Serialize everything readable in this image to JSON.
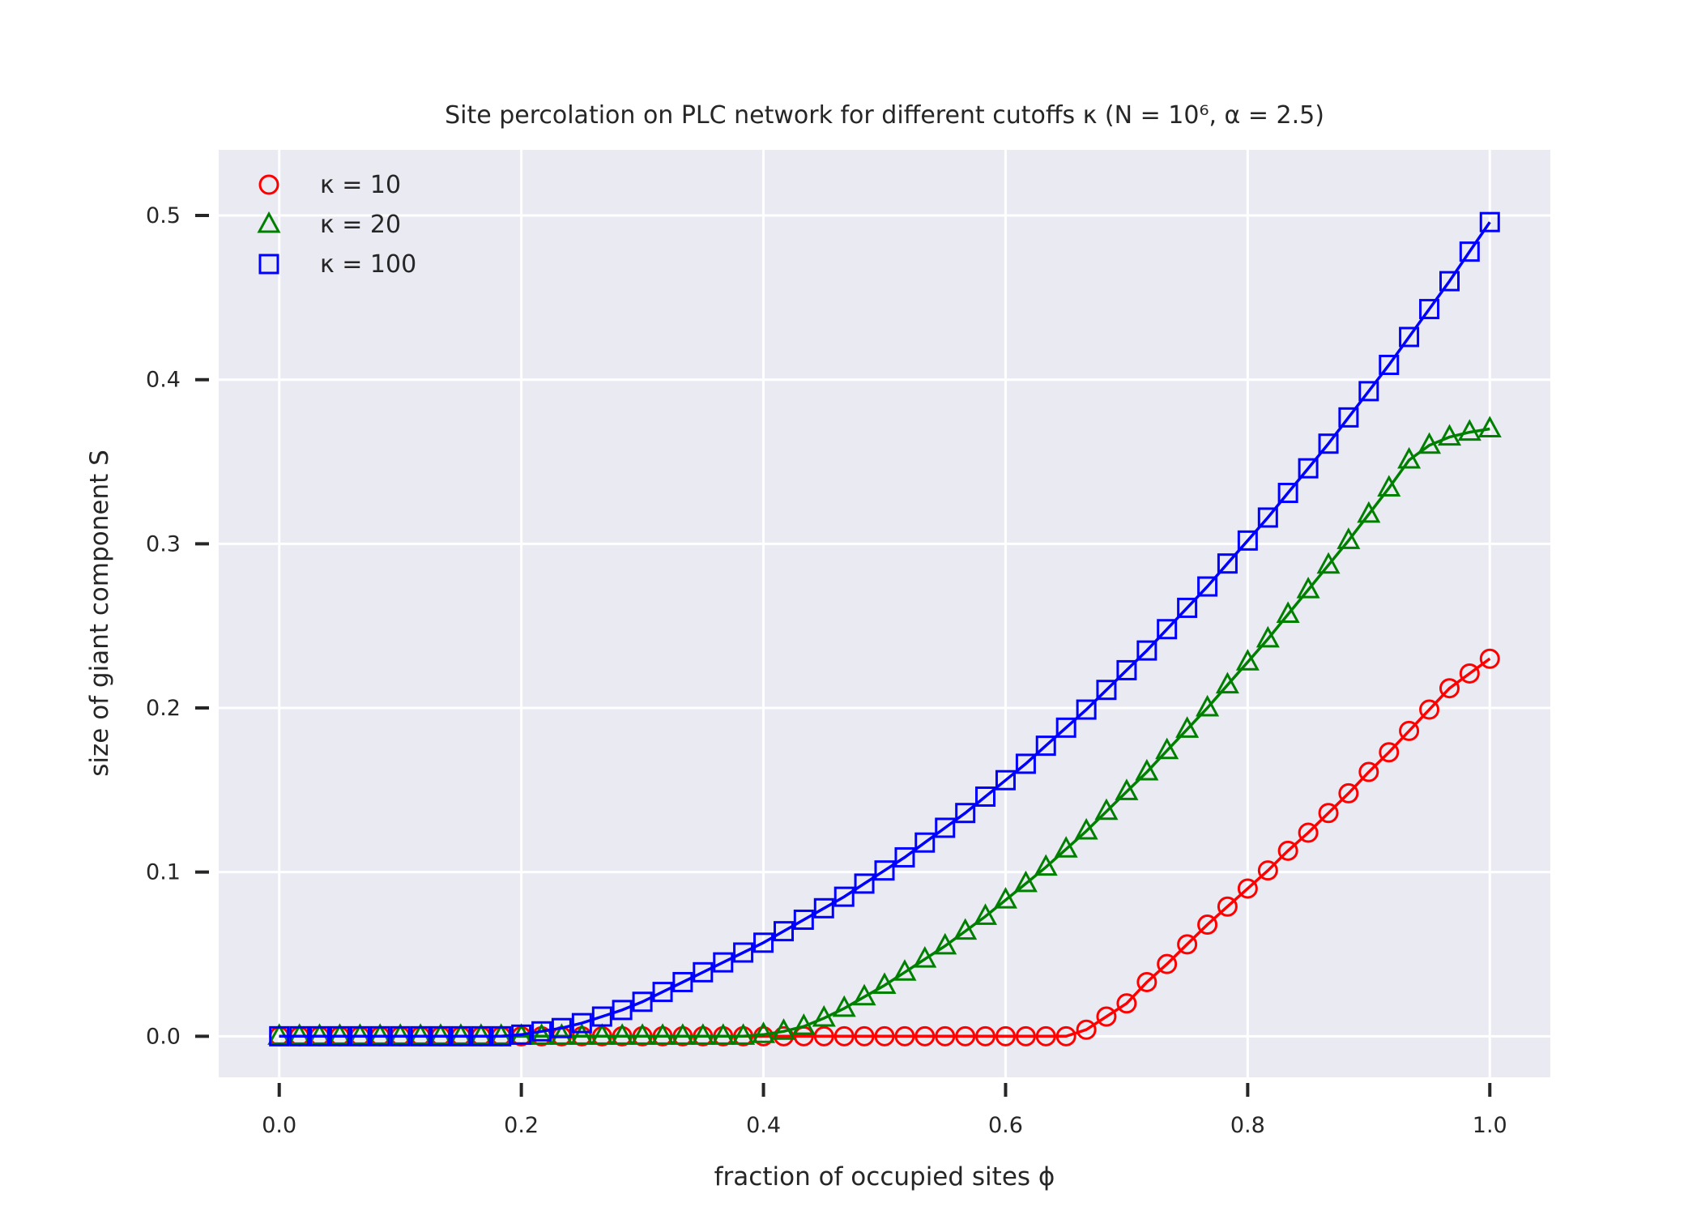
{
  "chart_data": {
    "type": "line",
    "title": "Site percolation on PLC network for different cutoffs κ (N = 10⁶, α = 2.5)",
    "xlabel": "fraction of occupied sites ϕ",
    "ylabel": "size of giant component S",
    "xlim": [
      -0.05,
      1.05
    ],
    "ylim": [
      -0.025,
      0.54
    ],
    "xticks": [
      0.0,
      0.2,
      0.4,
      0.6,
      0.8,
      1.0
    ],
    "xtick_labels": [
      "0.0",
      "0.2",
      "0.4",
      "0.6",
      "0.8",
      "1.0"
    ],
    "yticks": [
      0.0,
      0.1,
      0.2,
      0.3,
      0.4,
      0.5
    ],
    "ytick_labels": [
      "0.0",
      "0.1",
      "0.2",
      "0.3",
      "0.4",
      "0.5"
    ],
    "grid": true,
    "legend_position": "top-left",
    "background_color": "#eaeaf2",
    "series": [
      {
        "name": "κ = 10",
        "color": "#ff0000",
        "marker": "circle",
        "x": [
          0.0,
          0.0167,
          0.0333,
          0.05,
          0.0667,
          0.0833,
          0.1,
          0.1167,
          0.1333,
          0.15,
          0.1667,
          0.1833,
          0.2,
          0.2167,
          0.2333,
          0.25,
          0.2667,
          0.2833,
          0.3,
          0.3167,
          0.3333,
          0.35,
          0.3667,
          0.3833,
          0.4,
          0.4167,
          0.4333,
          0.45,
          0.4667,
          0.4833,
          0.5,
          0.5167,
          0.5333,
          0.55,
          0.5667,
          0.5833,
          0.6,
          0.6167,
          0.6333,
          0.65,
          0.6667,
          0.6833,
          0.7,
          0.7167,
          0.7333,
          0.75,
          0.7667,
          0.7833,
          0.8,
          0.8167,
          0.8333,
          0.85,
          0.8667,
          0.8833,
          0.9,
          0.9167,
          0.9333,
          0.95,
          0.9667,
          0.9833,
          1.0
        ],
        "y": [
          0.0,
          0.0,
          0.0,
          0.0,
          0.0,
          0.0,
          0.0,
          0.0,
          0.0,
          0.0,
          0.0,
          0.0,
          0.0,
          0.0,
          0.0,
          0.0,
          0.0,
          0.0,
          0.0,
          0.0,
          0.0,
          0.0,
          0.0,
          0.0,
          0.0,
          0.0,
          0.0,
          0.0,
          0.0,
          0.0,
          0.0,
          0.0,
          0.0,
          0.0,
          0.0,
          0.0,
          0.0,
          0.0,
          0.0,
          0.0,
          0.004,
          0.012,
          0.02,
          0.033,
          0.044,
          0.056,
          0.068,
          0.079,
          0.09,
          0.101,
          0.113,
          0.124,
          0.136,
          0.148,
          0.161,
          0.173,
          0.186,
          0.199,
          0.212,
          0.221,
          0.23
        ]
      },
      {
        "name": "κ = 20",
        "color": "#008000",
        "marker": "triangle",
        "x": [
          0.0,
          0.0167,
          0.0333,
          0.05,
          0.0667,
          0.0833,
          0.1,
          0.1167,
          0.1333,
          0.15,
          0.1667,
          0.1833,
          0.2,
          0.2167,
          0.2333,
          0.25,
          0.2667,
          0.2833,
          0.3,
          0.3167,
          0.3333,
          0.35,
          0.3667,
          0.3833,
          0.4,
          0.4167,
          0.4333,
          0.45,
          0.4667,
          0.4833,
          0.5,
          0.5167,
          0.5333,
          0.55,
          0.5667,
          0.5833,
          0.6,
          0.6167,
          0.6333,
          0.65,
          0.6667,
          0.6833,
          0.7,
          0.7167,
          0.7333,
          0.75,
          0.7667,
          0.7833,
          0.8,
          0.8167,
          0.8333,
          0.85,
          0.8667,
          0.8833,
          0.9,
          0.9167,
          0.9333,
          0.95,
          0.9667,
          0.9833,
          1.0
        ],
        "y": [
          0.0,
          0.0,
          0.0,
          0.0,
          0.0,
          0.0,
          0.0,
          0.0,
          0.0,
          0.0,
          0.0,
          0.0,
          0.0,
          0.0,
          0.0,
          0.0,
          0.0,
          0.0,
          0.0,
          0.0,
          0.0,
          0.0,
          0.0,
          0.0,
          0.001,
          0.003,
          0.006,
          0.011,
          0.017,
          0.024,
          0.031,
          0.039,
          0.047,
          0.055,
          0.064,
          0.073,
          0.083,
          0.093,
          0.103,
          0.114,
          0.125,
          0.137,
          0.149,
          0.161,
          0.174,
          0.187,
          0.2,
          0.214,
          0.228,
          0.242,
          0.257,
          0.272,
          0.287,
          0.302,
          0.318,
          0.334,
          0.351,
          0.36,
          0.365,
          0.368,
          0.37
        ]
      },
      {
        "name": "κ = 100",
        "color": "#0000ff",
        "marker": "square",
        "x": [
          0.0,
          0.0167,
          0.0333,
          0.05,
          0.0667,
          0.0833,
          0.1,
          0.1167,
          0.1333,
          0.15,
          0.1667,
          0.1833,
          0.2,
          0.2167,
          0.2333,
          0.25,
          0.2667,
          0.2833,
          0.3,
          0.3167,
          0.3333,
          0.35,
          0.3667,
          0.3833,
          0.4,
          0.4167,
          0.4333,
          0.45,
          0.4667,
          0.4833,
          0.5,
          0.5167,
          0.5333,
          0.55,
          0.5667,
          0.5833,
          0.6,
          0.6167,
          0.6333,
          0.65,
          0.6667,
          0.6833,
          0.7,
          0.7167,
          0.7333,
          0.75,
          0.7667,
          0.7833,
          0.8,
          0.8167,
          0.8333,
          0.85,
          0.8667,
          0.8833,
          0.9,
          0.9167,
          0.9333,
          0.95,
          0.9667,
          0.9833,
          1.0
        ],
        "y": [
          0.0,
          0.0,
          0.0,
          0.0,
          0.0,
          0.0,
          0.0,
          0.0,
          0.0,
          0.0,
          0.0,
          0.0,
          0.001,
          0.003,
          0.005,
          0.008,
          0.012,
          0.016,
          0.021,
          0.027,
          0.033,
          0.039,
          0.045,
          0.051,
          0.057,
          0.064,
          0.071,
          0.078,
          0.085,
          0.093,
          0.101,
          0.109,
          0.118,
          0.127,
          0.136,
          0.146,
          0.156,
          0.166,
          0.177,
          0.188,
          0.199,
          0.211,
          0.223,
          0.235,
          0.248,
          0.261,
          0.274,
          0.288,
          0.302,
          0.316,
          0.331,
          0.346,
          0.361,
          0.377,
          0.393,
          0.409,
          0.426,
          0.443,
          0.46,
          0.478,
          0.496
        ]
      }
    ]
  }
}
